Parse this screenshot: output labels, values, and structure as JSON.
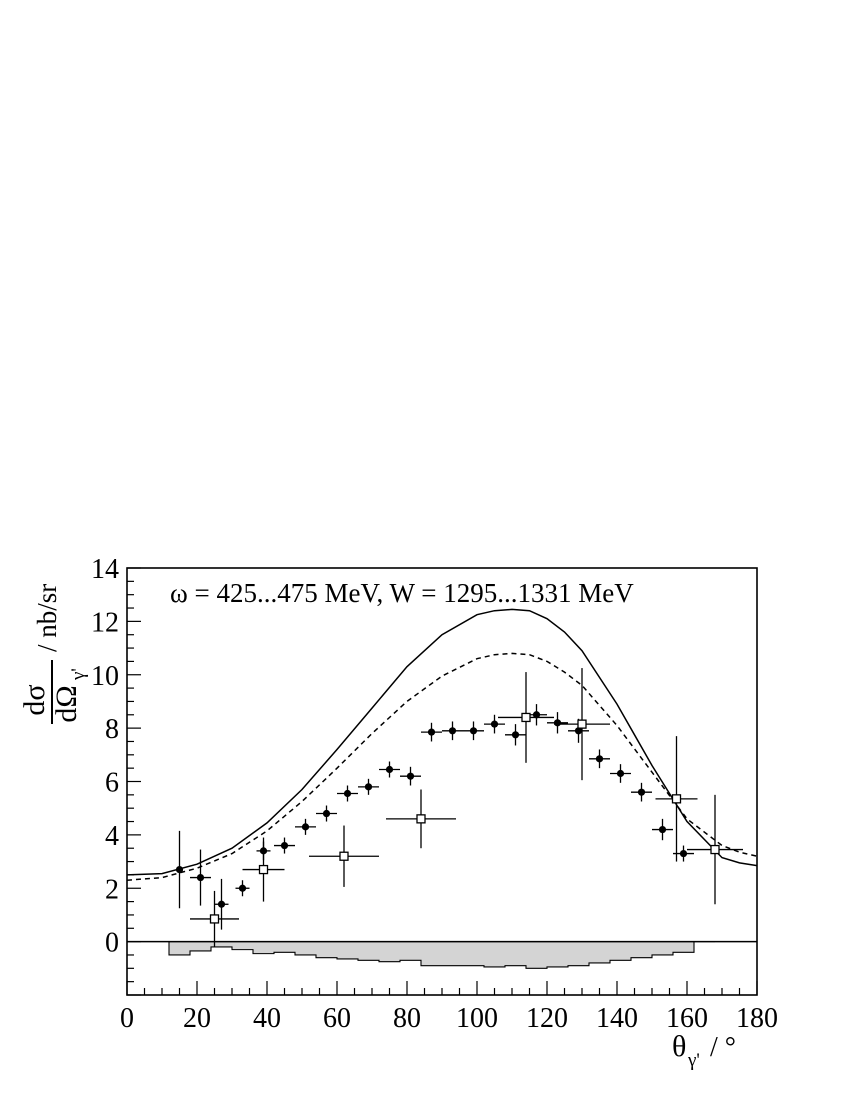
{
  "chart_data": {
    "type": "scatter",
    "title": "",
    "annotation": "ω = 425...475 MeV, W = 1295...1331 MeV",
    "ylabel": {
      "numerator": "dσ",
      "denominator": "dΩ",
      "subscript": "γ'",
      "unit": "/ nb/sr"
    },
    "xlabel": {
      "symbol": "θ",
      "subscript": "γ'",
      "unit": "/ °"
    },
    "xlim": [
      0,
      180
    ],
    "ylim": [
      -2,
      14
    ],
    "x_ticks": [
      0,
      20,
      40,
      60,
      80,
      100,
      120,
      140,
      160,
      180
    ],
    "x_tick_labels": [
      "0",
      "20",
      "40",
      "60",
      "80",
      "100",
      "120",
      "140",
      "160",
      "180"
    ],
    "y_ticks": [
      0,
      2,
      4,
      6,
      8,
      10,
      12,
      14
    ],
    "y_tick_labels": [
      "0",
      "2",
      "4",
      "6",
      "8",
      "10",
      "12",
      "14"
    ],
    "grid": false,
    "series": [
      {
        "marker": "filled-circle",
        "points": [
          {
            "x": 15,
            "y": 2.7,
            "yerr": 1.45,
            "xerr": 0
          },
          {
            "x": 21,
            "y": 2.4,
            "yerr": 1.05,
            "xerr": 3
          },
          {
            "x": 27,
            "y": 1.4,
            "yerr": 0.95,
            "xerr": 2
          },
          {
            "x": 33,
            "y": 2.0,
            "yerr": 0.3,
            "xerr": 2
          },
          {
            "x": 39,
            "y": 3.4,
            "yerr": 0.35,
            "xerr": 2
          },
          {
            "x": 45,
            "y": 3.6,
            "yerr": 0.3,
            "xerr": 3
          },
          {
            "x": 51,
            "y": 4.3,
            "yerr": 0.3,
            "xerr": 3
          },
          {
            "x": 57,
            "y": 4.8,
            "yerr": 0.3,
            "xerr": 3
          },
          {
            "x": 63,
            "y": 5.55,
            "yerr": 0.3,
            "xerr": 3
          },
          {
            "x": 69,
            "y": 5.8,
            "yerr": 0.3,
            "xerr": 3
          },
          {
            "x": 75,
            "y": 6.45,
            "yerr": 0.3,
            "xerr": 3
          },
          {
            "x": 81,
            "y": 6.2,
            "yerr": 0.35,
            "xerr": 3
          },
          {
            "x": 87,
            "y": 7.85,
            "yerr": 0.35,
            "xerr": 3
          },
          {
            "x": 93,
            "y": 7.9,
            "yerr": 0.35,
            "xerr": 3
          },
          {
            "x": 99,
            "y": 7.9,
            "yerr": 0.35,
            "xerr": 3
          },
          {
            "x": 105,
            "y": 8.15,
            "yerr": 0.35,
            "xerr": 3
          },
          {
            "x": 111,
            "y": 7.75,
            "yerr": 0.4,
            "xerr": 3
          },
          {
            "x": 117,
            "y": 8.5,
            "yerr": 0.4,
            "xerr": 3
          },
          {
            "x": 123,
            "y": 8.2,
            "yerr": 0.4,
            "xerr": 3
          },
          {
            "x": 129,
            "y": 7.9,
            "yerr": 0.45,
            "xerr": 3
          },
          {
            "x": 135,
            "y": 6.85,
            "yerr": 0.35,
            "xerr": 3
          },
          {
            "x": 141,
            "y": 6.3,
            "yerr": 0.35,
            "xerr": 3
          },
          {
            "x": 147,
            "y": 5.6,
            "yerr": 0.35,
            "xerr": 3
          },
          {
            "x": 153,
            "y": 4.2,
            "yerr": 0.4,
            "xerr": 3
          },
          {
            "x": 159,
            "y": 3.3,
            "yerr": 0.3,
            "xerr": 3
          }
        ]
      },
      {
        "marker": "open-square",
        "points": [
          {
            "x": 25,
            "y": 0.85,
            "yerr": 1.05,
            "xerr": 7
          },
          {
            "x": 39,
            "y": 2.7,
            "yerr": 1.2,
            "xerr": 6
          },
          {
            "x": 62,
            "y": 3.2,
            "yerr": 1.15,
            "xerr": 10
          },
          {
            "x": 84,
            "y": 4.6,
            "yerr": 1.1,
            "xerr": 10
          },
          {
            "x": 114,
            "y": 8.4,
            "yerr": 1.7,
            "xerr": 8
          },
          {
            "x": 130,
            "y": 8.15,
            "yerr": 2.1,
            "xerr": 8
          },
          {
            "x": 157,
            "y": 5.35,
            "yerr": 2.35,
            "xerr": 6
          },
          {
            "x": 168,
            "y": 3.45,
            "yerr": 2.05,
            "xerr": 8
          }
        ]
      }
    ],
    "curves": [
      {
        "style": "solid",
        "x": [
          0,
          10,
          20,
          30,
          40,
          50,
          60,
          70,
          80,
          90,
          100,
          105,
          110,
          115,
          120,
          125,
          130,
          140,
          150,
          160,
          170,
          175,
          180
        ],
        "y": [
          2.5,
          2.55,
          2.9,
          3.5,
          4.45,
          5.7,
          7.2,
          8.75,
          10.3,
          11.5,
          12.25,
          12.4,
          12.45,
          12.4,
          12.1,
          11.6,
          10.9,
          8.9,
          6.6,
          4.5,
          3.15,
          2.95,
          2.85
        ]
      },
      {
        "style": "dashed",
        "x": [
          0,
          10,
          20,
          30,
          40,
          50,
          60,
          70,
          80,
          90,
          100,
          105,
          110,
          115,
          120,
          125,
          130,
          140,
          150,
          160,
          170,
          175,
          180
        ],
        "y": [
          2.3,
          2.4,
          2.75,
          3.3,
          4.15,
          5.25,
          6.5,
          7.8,
          9.0,
          9.95,
          10.6,
          10.75,
          10.8,
          10.75,
          10.5,
          10.1,
          9.6,
          8.1,
          6.35,
          4.6,
          3.6,
          3.35,
          3.2
        ]
      }
    ],
    "systematic_band": {
      "bin_width": 6,
      "bin_starts": [
        12,
        18,
        24,
        30,
        36,
        42,
        48,
        54,
        60,
        66,
        72,
        78,
        84,
        90,
        96,
        102,
        108,
        114,
        120,
        126,
        132,
        138,
        144,
        150,
        156,
        162
      ],
      "values": [
        -0.5,
        -0.35,
        -0.2,
        -0.3,
        -0.45,
        -0.4,
        -0.5,
        -0.6,
        -0.65,
        -0.7,
        -0.75,
        -0.7,
        -0.9,
        -0.9,
        -0.9,
        -0.95,
        -0.9,
        -1.0,
        -0.95,
        -0.9,
        -0.8,
        -0.7,
        -0.6,
        -0.5,
        -0.4,
        0
      ]
    }
  }
}
